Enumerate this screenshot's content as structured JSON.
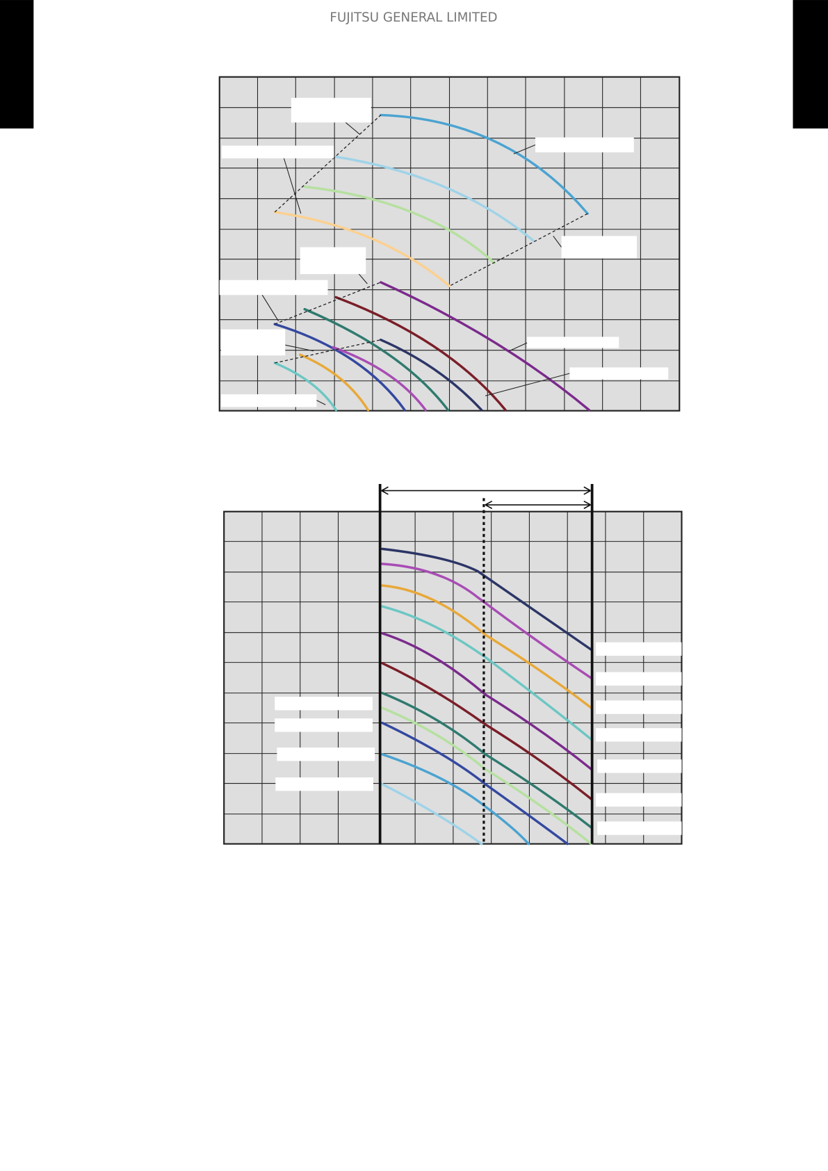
{
  "header": {
    "title": "FUJITSU GENERAL LIMITED"
  }
}
